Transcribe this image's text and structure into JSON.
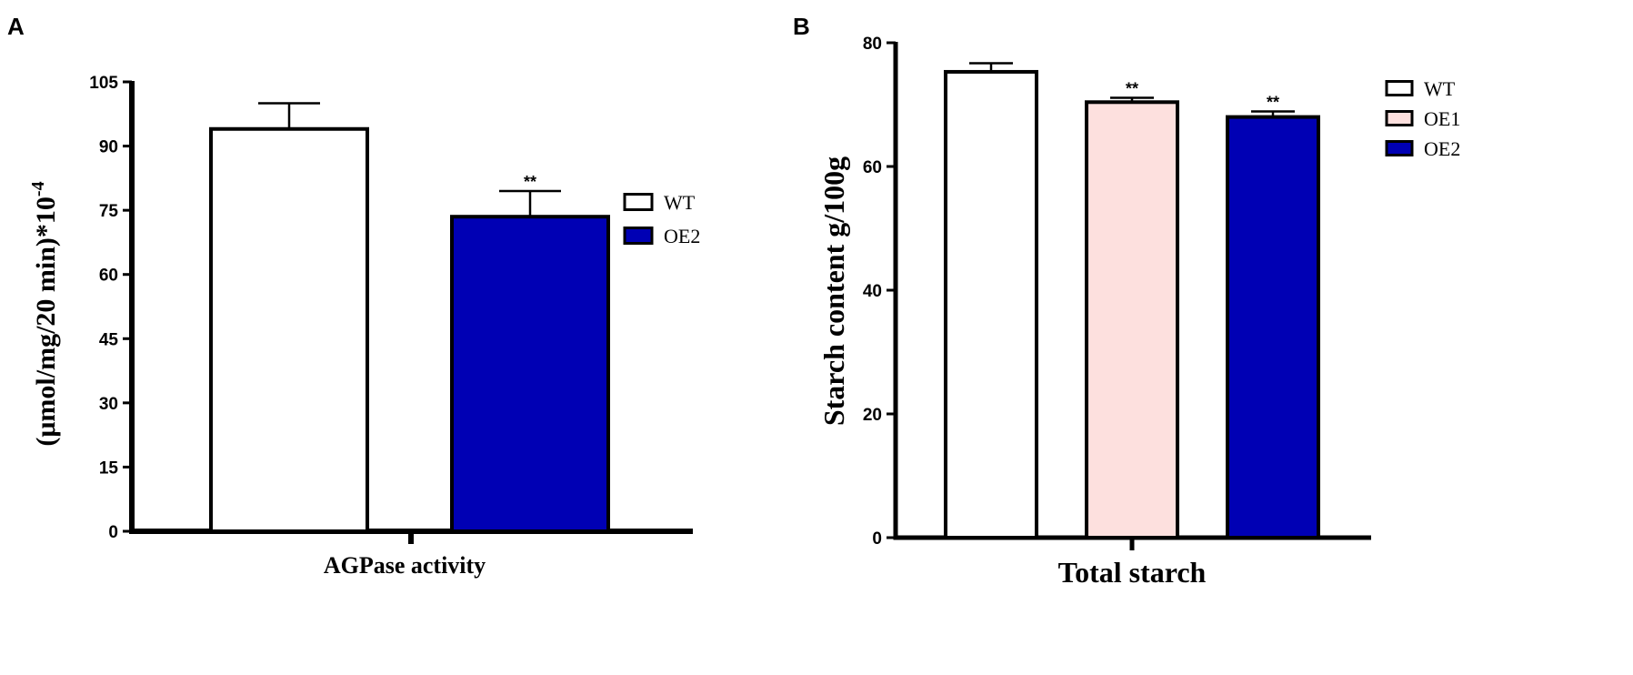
{
  "chart_data": [
    {
      "panel": "A",
      "type": "bar",
      "categories": [
        "WT",
        "OE2"
      ],
      "values": [
        94,
        73.5
      ],
      "errors": [
        6,
        6
      ],
      "significance": [
        "",
        "**"
      ],
      "colors": [
        "#ffffff",
        "#0000b4"
      ],
      "ylabel": "(μmol/mg/20 min)*10",
      "ylabel_exp": "-4",
      "xlabel": "AGPase activity",
      "ylim": [
        0,
        105
      ],
      "yticks": [
        0,
        15,
        30,
        45,
        60,
        75,
        90,
        105
      ],
      "legend": [
        "WT",
        "OE2"
      ],
      "legend_position": "right"
    },
    {
      "panel": "B",
      "type": "bar",
      "categories": [
        "WT",
        "OE1",
        "OE2"
      ],
      "values": [
        75.3,
        70.4,
        68
      ],
      "errors": [
        1.4,
        0.7,
        0.9
      ],
      "significance": [
        "",
        "**",
        "**"
      ],
      "colors": [
        "#ffffff",
        "#fde0de",
        "#0000b4"
      ],
      "ylabel": "Starch content g/100g",
      "xlabel": "Total starch",
      "ylim": [
        0,
        80
      ],
      "yticks": [
        0,
        20,
        40,
        60,
        80
      ],
      "legend": [
        "WT",
        "OE1",
        "OE2"
      ],
      "legend_position": "top-right"
    }
  ]
}
